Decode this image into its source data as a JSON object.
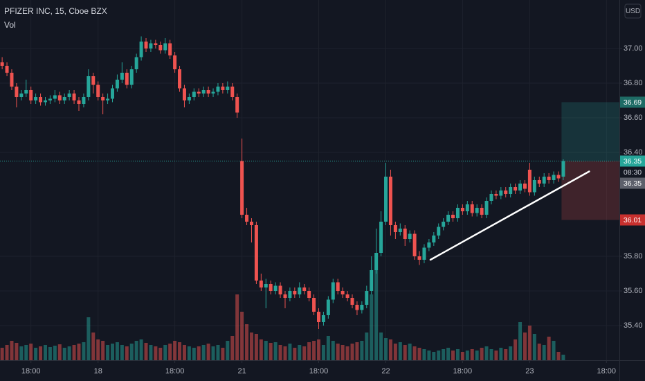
{
  "chart_data": {
    "type": "candlestick",
    "title": "PFIZER INC, 15, Cboe BZX",
    "volume_label": "Vol",
    "currency": "USD",
    "up_color": "#26a69a",
    "down_color": "#ef5350",
    "ylim": [
      35.2,
      37.28
    ],
    "yticks": [
      {
        "value": 37.0,
        "label": "37.00"
      },
      {
        "value": 36.8,
        "label": "36.80"
      },
      {
        "value": 36.6,
        "label": "36.60"
      },
      {
        "value": 36.4,
        "label": "36.40"
      },
      {
        "value": 35.8,
        "label": "35.80"
      },
      {
        "value": 35.6,
        "label": "35.60"
      },
      {
        "value": 35.4,
        "label": "35.40"
      }
    ],
    "xlim": [
      -0.45,
      128.7
    ],
    "xticks": [
      {
        "value": 6,
        "label": "18:00"
      },
      {
        "value": 20,
        "label": "18"
      },
      {
        "value": 36,
        "label": "18:00"
      },
      {
        "value": 50,
        "label": "21"
      },
      {
        "value": 66,
        "label": "18:00"
      },
      {
        "value": 80,
        "label": "22"
      },
      {
        "value": 96,
        "label": "18:00"
      },
      {
        "value": 110,
        "label": "23"
      },
      {
        "value": 126,
        "label": "18:00"
      }
    ],
    "grid": true,
    "ohlc": [
      [
        36.92,
        36.95,
        36.88,
        36.9
      ],
      [
        36.9,
        36.92,
        36.84,
        36.86
      ],
      [
        36.86,
        36.88,
        36.76,
        36.78
      ],
      [
        36.78,
        36.8,
        36.66,
        36.72
      ],
      [
        36.72,
        36.76,
        36.7,
        36.74
      ],
      [
        36.74,
        36.82,
        36.72,
        36.76
      ],
      [
        36.76,
        36.78,
        36.68,
        36.7
      ],
      [
        36.7,
        36.74,
        36.68,
        36.72
      ],
      [
        36.72,
        36.74,
        36.67,
        36.69
      ],
      [
        36.69,
        36.72,
        36.67,
        36.7
      ],
      [
        36.7,
        36.73,
        36.68,
        36.71
      ],
      [
        36.71,
        36.76,
        36.69,
        36.73
      ],
      [
        36.73,
        36.75,
        36.68,
        36.7
      ],
      [
        36.7,
        36.74,
        36.68,
        36.72
      ],
      [
        36.72,
        36.76,
        36.7,
        36.74
      ],
      [
        36.74,
        36.76,
        36.68,
        36.7
      ],
      [
        36.7,
        36.72,
        36.64,
        36.68
      ],
      [
        36.68,
        36.74,
        36.66,
        36.72
      ],
      [
        36.72,
        36.88,
        36.7,
        36.84
      ],
      [
        36.84,
        36.86,
        36.74,
        36.79
      ],
      [
        36.79,
        36.81,
        36.7,
        36.72
      ],
      [
        36.72,
        36.74,
        36.62,
        36.7
      ],
      [
        36.7,
        36.74,
        36.68,
        36.71
      ],
      [
        36.71,
        36.79,
        36.69,
        36.77
      ],
      [
        36.77,
        36.85,
        36.75,
        36.82
      ],
      [
        36.82,
        36.92,
        36.8,
        36.86
      ],
      [
        36.86,
        36.88,
        36.77,
        36.79
      ],
      [
        36.79,
        36.9,
        36.77,
        36.88
      ],
      [
        36.88,
        36.97,
        36.86,
        36.95
      ],
      [
        36.95,
        37.07,
        36.93,
        37.04
      ],
      [
        37.04,
        37.06,
        36.98,
        37.0
      ],
      [
        37.0,
        37.05,
        36.98,
        37.03
      ],
      [
        37.03,
        37.05,
        37.0,
        37.02
      ],
      [
        37.02,
        37.04,
        36.97,
        36.99
      ],
      [
        36.99,
        37.06,
        36.97,
        37.03
      ],
      [
        37.03,
        37.05,
        36.94,
        36.96
      ],
      [
        36.96,
        36.98,
        36.86,
        36.88
      ],
      [
        36.88,
        36.9,
        36.75,
        36.77
      ],
      [
        36.77,
        36.79,
        36.66,
        36.7
      ],
      [
        36.7,
        36.74,
        36.68,
        36.72
      ],
      [
        36.72,
        36.77,
        36.7,
        36.75
      ],
      [
        36.75,
        36.77,
        36.72,
        36.74
      ],
      [
        36.74,
        36.78,
        36.72,
        36.76
      ],
      [
        36.76,
        36.78,
        36.72,
        36.74
      ],
      [
        36.74,
        36.77,
        36.72,
        36.75
      ],
      [
        36.75,
        36.8,
        36.73,
        36.78
      ],
      [
        36.78,
        36.8,
        36.74,
        36.76
      ],
      [
        36.76,
        36.81,
        36.74,
        36.78
      ],
      [
        36.78,
        36.8,
        36.7,
        36.72
      ],
      [
        36.72,
        36.74,
        36.6,
        36.63
      ],
      [
        36.35,
        36.48,
        36.02,
        36.04
      ],
      [
        36.04,
        36.08,
        35.98,
        36.0
      ],
      [
        36.0,
        36.02,
        35.88,
        35.98
      ],
      [
        35.98,
        36.0,
        35.64,
        35.66
      ],
      [
        35.66,
        35.7,
        35.6,
        35.62
      ],
      [
        35.62,
        35.67,
        35.5,
        35.64
      ],
      [
        35.64,
        35.66,
        35.58,
        35.6
      ],
      [
        35.6,
        35.65,
        35.58,
        35.63
      ],
      [
        35.63,
        35.65,
        35.56,
        35.58
      ],
      [
        35.58,
        35.6,
        35.5,
        35.56
      ],
      [
        35.56,
        35.62,
        35.54,
        35.6
      ],
      [
        35.6,
        35.62,
        35.56,
        35.58
      ],
      [
        35.58,
        35.65,
        35.56,
        35.62
      ],
      [
        35.62,
        35.64,
        35.58,
        35.6
      ],
      [
        35.6,
        35.62,
        35.54,
        35.56
      ],
      [
        35.56,
        35.58,
        35.46,
        35.48
      ],
      [
        35.48,
        35.5,
        35.38,
        35.42
      ],
      [
        35.42,
        35.48,
        35.4,
        35.46
      ],
      [
        35.46,
        35.57,
        35.44,
        35.55
      ],
      [
        35.55,
        35.67,
        35.53,
        35.65
      ],
      [
        35.65,
        35.67,
        35.58,
        35.6
      ],
      [
        35.6,
        35.62,
        35.56,
        35.58
      ],
      [
        35.58,
        35.6,
        35.54,
        35.56
      ],
      [
        35.56,
        35.58,
        35.5,
        35.52
      ],
      [
        35.52,
        35.54,
        35.46,
        35.49
      ],
      [
        35.49,
        35.54,
        35.47,
        35.52
      ],
      [
        35.52,
        35.63,
        35.5,
        35.6
      ],
      [
        35.6,
        35.8,
        35.58,
        35.72
      ],
      [
        35.72,
        35.96,
        35.7,
        35.82
      ],
      [
        35.82,
        36.06,
        35.8,
        36.0
      ],
      [
        36.0,
        36.34,
        35.98,
        36.26
      ],
      [
        36.26,
        36.3,
        35.92,
        35.98
      ],
      [
        35.98,
        36.0,
        35.9,
        35.94
      ],
      [
        35.94,
        35.99,
        35.92,
        35.96
      ],
      [
        35.96,
        35.98,
        35.86,
        35.9
      ],
      [
        35.9,
        35.95,
        35.88,
        35.93
      ],
      [
        35.93,
        35.95,
        35.78,
        35.8
      ],
      [
        35.8,
        35.83,
        35.75,
        35.78
      ],
      [
        35.78,
        35.87,
        35.76,
        35.85
      ],
      [
        35.85,
        35.9,
        35.83,
        35.88
      ],
      [
        35.88,
        35.94,
        35.86,
        35.92
      ],
      [
        35.92,
        35.99,
        35.9,
        35.97
      ],
      [
        35.97,
        36.02,
        35.95,
        36.0
      ],
      [
        36.0,
        36.06,
        35.98,
        36.04
      ],
      [
        36.04,
        36.06,
        36.0,
        36.02
      ],
      [
        36.02,
        36.1,
        36.0,
        36.08
      ],
      [
        36.08,
        36.1,
        36.04,
        36.06
      ],
      [
        36.06,
        36.12,
        36.04,
        36.1
      ],
      [
        36.1,
        36.12,
        36.03,
        36.05
      ],
      [
        36.05,
        36.1,
        36.03,
        36.08
      ],
      [
        36.08,
        36.1,
        36.02,
        36.04
      ],
      [
        36.04,
        36.14,
        36.02,
        36.12
      ],
      [
        36.12,
        36.18,
        36.1,
        36.16
      ],
      [
        36.16,
        36.18,
        36.13,
        36.15
      ],
      [
        36.15,
        36.2,
        36.13,
        36.18
      ],
      [
        36.18,
        36.2,
        36.14,
        36.16
      ],
      [
        36.16,
        36.22,
        36.14,
        36.2
      ],
      [
        36.2,
        36.22,
        36.16,
        36.18
      ],
      [
        36.18,
        36.24,
        36.16,
        36.22
      ],
      [
        36.22,
        36.24,
        36.17,
        36.19
      ],
      [
        36.3,
        36.34,
        36.15,
        36.17
      ],
      [
        36.17,
        36.26,
        36.15,
        36.24
      ],
      [
        36.24,
        36.26,
        36.2,
        36.22
      ],
      [
        36.22,
        36.28,
        36.2,
        36.26
      ],
      [
        36.26,
        36.28,
        36.22,
        36.24
      ],
      [
        36.24,
        36.29,
        36.22,
        36.27
      ],
      [
        36.27,
        36.29,
        36.23,
        36.25
      ],
      [
        36.26,
        36.36,
        36.24,
        36.35
      ]
    ],
    "volume": [
      18,
      22,
      28,
      25,
      20,
      22,
      24,
      18,
      20,
      22,
      19,
      21,
      23,
      18,
      20,
      22,
      24,
      26,
      62,
      40,
      30,
      28,
      22,
      24,
      26,
      22,
      20,
      24,
      28,
      30,
      25,
      22,
      20,
      18,
      22,
      24,
      28,
      26,
      22,
      20,
      18,
      20,
      22,
      24,
      20,
      22,
      18,
      28,
      35,
      95,
      70,
      52,
      40,
      38,
      30,
      28,
      25,
      26,
      22,
      20,
      24,
      18,
      22,
      20,
      26,
      28,
      30,
      22,
      35,
      28,
      24,
      22,
      20,
      24,
      26,
      28,
      40,
      95,
      130,
      40,
      32,
      30,
      24,
      26,
      22,
      24,
      20,
      18,
      16,
      14,
      12,
      14,
      16,
      18,
      14,
      16,
      12,
      14,
      16,
      14,
      18,
      20,
      16,
      14,
      18,
      16,
      20,
      30,
      55,
      40,
      50,
      38,
      24,
      22,
      34,
      28,
      12,
      8
    ],
    "last_price": 36.35,
    "countdown": "08:30",
    "position": {
      "target": 36.69,
      "entry": 36.35,
      "stop": 36.01,
      "start": 117
    },
    "trend_line": {
      "from": [
        89.3,
        35.78
      ],
      "to": [
        122.4,
        36.29
      ]
    }
  }
}
